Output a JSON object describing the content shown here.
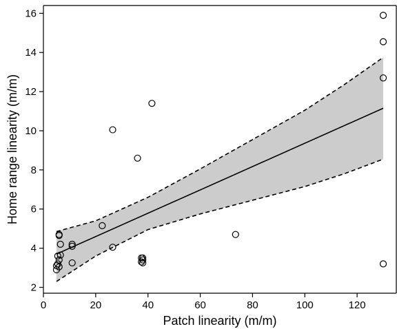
{
  "chart_data": {
    "type": "scatter",
    "title": "",
    "xlabel": "Patch linearity (m/m)",
    "ylabel": "Home range linearity (m/m)",
    "xlim": [
      0,
      135
    ],
    "ylim": [
      1.7,
      16.4
    ],
    "xticks": [
      0,
      20,
      40,
      60,
      80,
      100,
      120
    ],
    "yticks": [
      2,
      4,
      6,
      8,
      10,
      12,
      14,
      16
    ],
    "grid": false,
    "legend": "none",
    "points": [
      {
        "x": 5.0,
        "y": 2.9
      },
      {
        "x": 5.0,
        "y": 3.1
      },
      {
        "x": 5.5,
        "y": 3.2
      },
      {
        "x": 5.5,
        "y": 3.6
      },
      {
        "x": 6.0,
        "y": 3.05
      },
      {
        "x": 6.0,
        "y": 3.4
      },
      {
        "x": 6.5,
        "y": 3.65
      },
      {
        "x": 6.5,
        "y": 4.2
      },
      {
        "x": 6.0,
        "y": 4.65
      },
      {
        "x": 6.0,
        "y": 4.7
      },
      {
        "x": 11.0,
        "y": 3.25
      },
      {
        "x": 11.0,
        "y": 4.1
      },
      {
        "x": 11.0,
        "y": 4.2
      },
      {
        "x": 22.5,
        "y": 5.15
      },
      {
        "x": 26.5,
        "y": 4.05
      },
      {
        "x": 26.5,
        "y": 10.05
      },
      {
        "x": 36.0,
        "y": 8.6
      },
      {
        "x": 37.5,
        "y": 3.5
      },
      {
        "x": 37.5,
        "y": 3.3
      },
      {
        "x": 38.0,
        "y": 3.25
      },
      {
        "x": 38.0,
        "y": 3.4
      },
      {
        "x": 38.0,
        "y": 3.5
      },
      {
        "x": 41.5,
        "y": 11.4
      },
      {
        "x": 73.5,
        "y": 4.7
      },
      {
        "x": 130.0,
        "y": 15.9
      },
      {
        "x": 130.0,
        "y": 14.55
      },
      {
        "x": 130.0,
        "y": 12.7
      },
      {
        "x": 130.0,
        "y": 3.2
      }
    ],
    "fit_line": {
      "x": [
        5,
        130
      ],
      "y": [
        3.7,
        11.15
      ]
    },
    "confidence_band": {
      "x": [
        5.0,
        20,
        40,
        60,
        80,
        100,
        115,
        130
      ],
      "upper": [
        4.85,
        5.4,
        6.6,
        8.05,
        9.55,
        11.05,
        12.35,
        13.75
      ],
      "lower": [
        2.3,
        3.6,
        4.95,
        5.75,
        6.45,
        7.15,
        7.8,
        8.55
      ]
    },
    "style": {
      "band_fill": "#cccccc",
      "line_color": "#000000",
      "marker_stroke": "#000000"
    }
  }
}
